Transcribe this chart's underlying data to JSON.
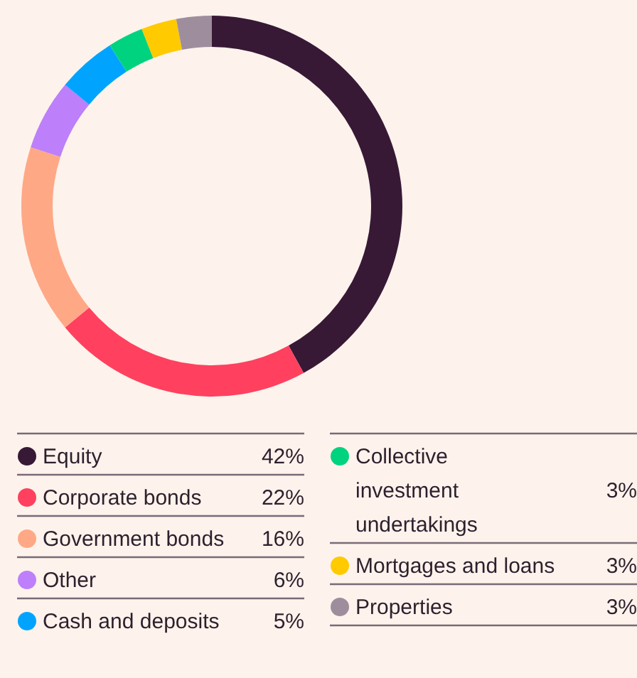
{
  "chart_data": {
    "type": "donut",
    "categories": [
      "Equity",
      "Corporate bonds",
      "Government bonds",
      "Other",
      "Cash and deposits",
      "Collective investment undertakings",
      "Mortgages and loans",
      "Properties"
    ],
    "values": [
      42,
      22,
      16,
      6,
      5,
      3,
      3,
      3
    ],
    "value_labels": [
      "42%",
      "22%",
      "16%",
      "6%",
      "5%",
      "3%",
      "3%",
      "3%"
    ],
    "colors": [
      "#371936",
      "#ff405f",
      "#ffa886",
      "#bd7ffa",
      "#00a4ff",
      "#00d37f",
      "#ffca00",
      "#9e8e9d"
    ],
    "legend": "bottom"
  }
}
